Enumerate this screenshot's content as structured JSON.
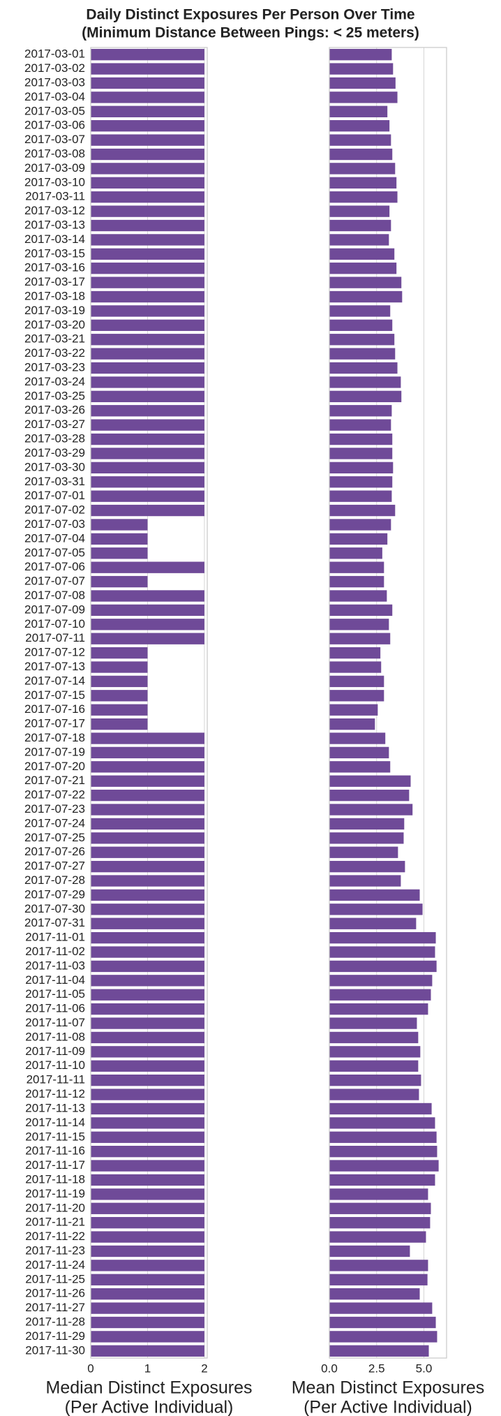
{
  "chart_data": [
    {
      "type": "bar",
      "title": [
        "Daily Distinct Exposures Per Person Over Time",
        "(Minimum Distance Between Pings: < 25 meters)"
      ],
      "xlabel": [
        "Median Distinct Exposures",
        "(Per Active Individual)"
      ],
      "color": "#6f4a98",
      "grid": true,
      "xlim": [
        0,
        2.05
      ],
      "xticks": [
        0,
        1,
        2
      ],
      "categories": [
        "2017-03-01",
        "2017-03-02",
        "2017-03-03",
        "2017-03-04",
        "2017-03-05",
        "2017-03-06",
        "2017-03-07",
        "2017-03-08",
        "2017-03-09",
        "2017-03-10",
        "2017-03-11",
        "2017-03-12",
        "2017-03-13",
        "2017-03-14",
        "2017-03-15",
        "2017-03-16",
        "2017-03-17",
        "2017-03-18",
        "2017-03-19",
        "2017-03-20",
        "2017-03-21",
        "2017-03-22",
        "2017-03-23",
        "2017-03-24",
        "2017-03-25",
        "2017-03-26",
        "2017-03-27",
        "2017-03-28",
        "2017-03-29",
        "2017-03-30",
        "2017-03-31",
        "2017-07-01",
        "2017-07-02",
        "2017-07-03",
        "2017-07-04",
        "2017-07-05",
        "2017-07-06",
        "2017-07-07",
        "2017-07-08",
        "2017-07-09",
        "2017-07-10",
        "2017-07-11",
        "2017-07-12",
        "2017-07-13",
        "2017-07-14",
        "2017-07-15",
        "2017-07-16",
        "2017-07-17",
        "2017-07-18",
        "2017-07-19",
        "2017-07-20",
        "2017-07-21",
        "2017-07-22",
        "2017-07-23",
        "2017-07-24",
        "2017-07-25",
        "2017-07-26",
        "2017-07-27",
        "2017-07-28",
        "2017-07-29",
        "2017-07-30",
        "2017-07-31",
        "2017-11-01",
        "2017-11-02",
        "2017-11-03",
        "2017-11-04",
        "2017-11-05",
        "2017-11-06",
        "2017-11-07",
        "2017-11-08",
        "2017-11-09",
        "2017-11-10",
        "2017-11-11",
        "2017-11-12",
        "2017-11-13",
        "2017-11-14",
        "2017-11-15",
        "2017-11-16",
        "2017-11-17",
        "2017-11-18",
        "2017-11-19",
        "2017-11-20",
        "2017-11-21",
        "2017-11-22",
        "2017-11-23",
        "2017-11-24",
        "2017-11-25",
        "2017-11-26",
        "2017-11-27",
        "2017-11-28",
        "2017-11-29",
        "2017-11-30"
      ],
      "values": [
        2,
        2,
        2,
        2,
        2,
        2,
        2,
        2,
        2,
        2,
        2,
        2,
        2,
        2,
        2,
        2,
        2,
        2,
        2,
        2,
        2,
        2,
        2,
        2,
        2,
        2,
        2,
        2,
        2,
        2,
        2,
        2,
        2,
        1,
        1,
        1,
        2,
        1,
        2,
        2,
        2,
        2,
        1,
        1,
        1,
        1,
        1,
        1,
        2,
        2,
        2,
        2,
        2,
        2,
        2,
        2,
        2,
        2,
        2,
        2,
        2,
        2,
        2,
        2,
        2,
        2,
        2,
        2,
        2,
        2,
        2,
        2,
        2,
        2,
        2,
        2,
        2,
        2,
        2,
        2,
        2,
        2,
        2,
        2,
        2,
        2,
        2,
        2,
        2,
        2,
        2,
        2
      ]
    },
    {
      "type": "bar",
      "xlabel": [
        "Mean Distinct Exposures",
        "(Per Active Individual)"
      ],
      "color": "#6f4a98",
      "grid": true,
      "xlim": [
        0,
        6.2
      ],
      "xticks": [
        {
          "value": 0,
          "label": "0.0"
        },
        2.5,
        {
          "value": 5,
          "label": "5.0"
        }
      ],
      "values": [
        3.3,
        3.37,
        3.5,
        3.6,
        3.07,
        3.18,
        3.26,
        3.33,
        3.48,
        3.55,
        3.6,
        3.18,
        3.26,
        3.15,
        3.44,
        3.55,
        3.81,
        3.85,
        3.22,
        3.33,
        3.44,
        3.48,
        3.6,
        3.78,
        3.81,
        3.3,
        3.26,
        3.33,
        3.33,
        3.37,
        3.33,
        3.3,
        3.48,
        3.26,
        3.07,
        2.8,
        2.89,
        2.89,
        3.04,
        3.33,
        3.15,
        3.22,
        2.7,
        2.74,
        2.89,
        2.89,
        2.56,
        2.41,
        2.96,
        3.15,
        3.22,
        4.3,
        4.22,
        4.4,
        3.96,
        3.93,
        3.63,
        4.0,
        3.78,
        4.78,
        4.93,
        4.59,
        5.63,
        5.59,
        5.67,
        5.44,
        5.37,
        5.22,
        4.63,
        4.7,
        4.81,
        4.7,
        4.85,
        4.74,
        5.41,
        5.59,
        5.67,
        5.7,
        5.78,
        5.59,
        5.22,
        5.37,
        5.33,
        5.11,
        4.26,
        5.22,
        5.19,
        4.78,
        5.44,
        5.63,
        5.7,
        5.26
      ]
    }
  ]
}
